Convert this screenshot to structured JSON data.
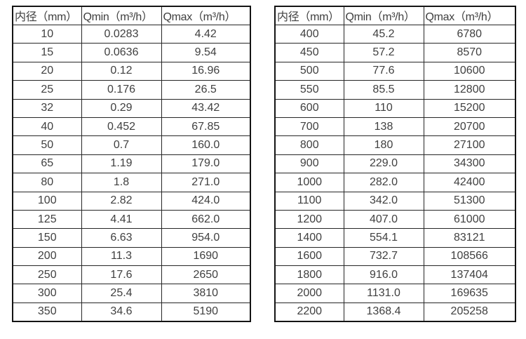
{
  "page": {
    "background_color": "#ffffff",
    "text_color": "#404040",
    "border_color": "#262626"
  },
  "tables": [
    {
      "name": "flow-rate-table-small-diameters",
      "headers": [
        "内径（mm）",
        "Qmin（m³/h）",
        "Qmax（m³/h）"
      ],
      "rows": [
        [
          "10",
          "0.0283",
          "4.42"
        ],
        [
          "15",
          "0.0636",
          "9.54"
        ],
        [
          "20",
          "0.12",
          "16.96"
        ],
        [
          "25",
          "0.176",
          "26.5"
        ],
        [
          "32",
          "0.29",
          "43.42"
        ],
        [
          "40",
          "0.452",
          "67.85"
        ],
        [
          "50",
          "0.7",
          "160.0"
        ],
        [
          "65",
          "1.19",
          "179.0"
        ],
        [
          "80",
          "1.8",
          "271.0"
        ],
        [
          "100",
          "2.82",
          "424.0"
        ],
        [
          "125",
          "4.41",
          "662.0"
        ],
        [
          "150",
          "6.63",
          "954.0"
        ],
        [
          "200",
          "11.3",
          "1690"
        ],
        [
          "250",
          "17.6",
          "2650"
        ],
        [
          "300",
          "25.4",
          "3810"
        ],
        [
          "350",
          "34.6",
          "5190"
        ]
      ]
    },
    {
      "name": "flow-rate-table-large-diameters",
      "headers": [
        "内径（mm）",
        "Qmin（m³/h）",
        "Qmax（m³/h）"
      ],
      "rows": [
        [
          "400",
          "45.2",
          "6780"
        ],
        [
          "450",
          "57.2",
          "8570"
        ],
        [
          "500",
          "77.6",
          "10600"
        ],
        [
          "550",
          "85.5",
          "12800"
        ],
        [
          "600",
          "110",
          "15200"
        ],
        [
          "700",
          "138",
          "20700"
        ],
        [
          "800",
          "180",
          "27100"
        ],
        [
          "900",
          "229.0",
          "34300"
        ],
        [
          "1000",
          "282.0",
          "42400"
        ],
        [
          "1100",
          "342.0",
          "51300"
        ],
        [
          "1200",
          "407.0",
          "61000"
        ],
        [
          "1400",
          "554.1",
          "83121"
        ],
        [
          "1600",
          "732.7",
          "108566"
        ],
        [
          "1800",
          "916.0",
          "137404"
        ],
        [
          "2000",
          "1131.0",
          "169635"
        ],
        [
          "2200",
          "1368.4",
          "205258"
        ]
      ]
    }
  ]
}
